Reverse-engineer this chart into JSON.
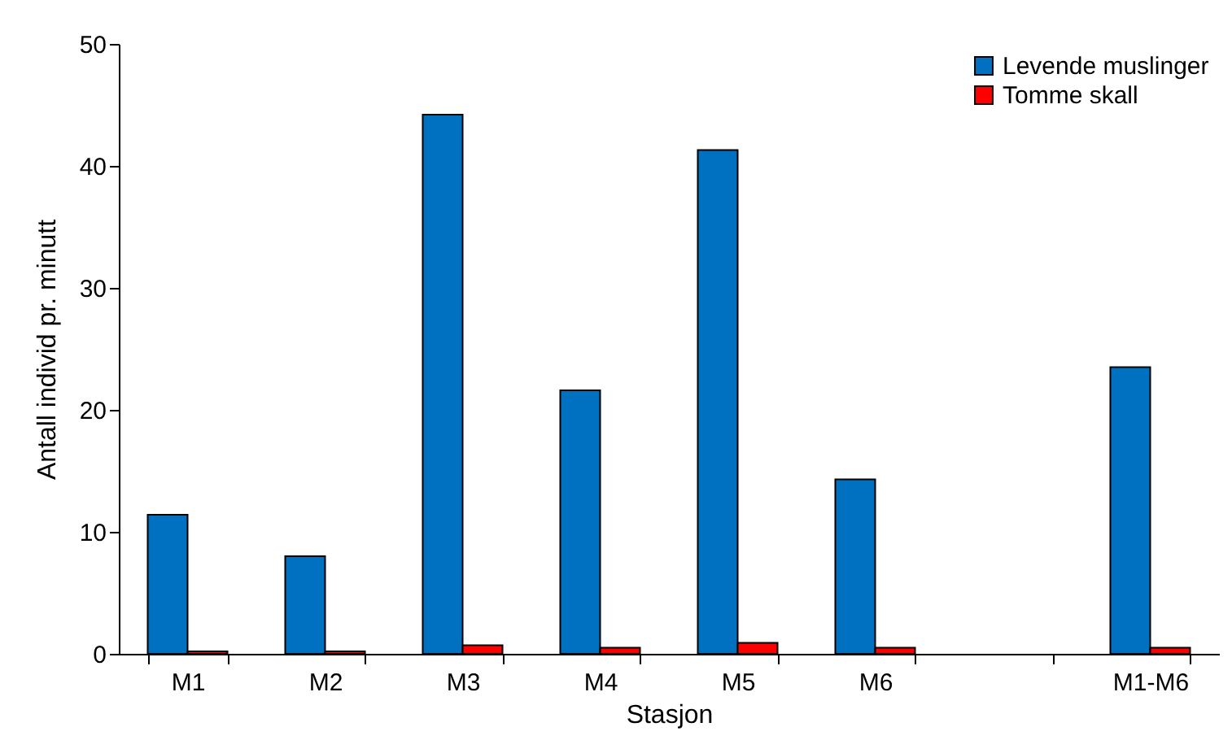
{
  "chart_data": {
    "type": "bar",
    "xlabel": "Stasjon",
    "ylabel": "Antall individ pr. minutt",
    "categories": [
      "M1",
      "M2",
      "M3",
      "M4",
      "M5",
      "M6",
      null,
      "M1-M6"
    ],
    "series": [
      {
        "name": "Levende muslinger",
        "color": "#0070c0",
        "values": [
          11.4,
          8.0,
          44.2,
          21.6,
          41.3,
          14.3,
          null,
          23.5
        ]
      },
      {
        "name": "Tomme skall",
        "color": "#ff0000",
        "values": [
          0.2,
          0.2,
          0.7,
          0.5,
          0.9,
          0.5,
          null,
          0.5
        ]
      }
    ],
    "ylim": [
      0,
      50
    ],
    "yticks": [
      0,
      10,
      20,
      30,
      40,
      50
    ],
    "grid": false,
    "legend": "top right"
  }
}
